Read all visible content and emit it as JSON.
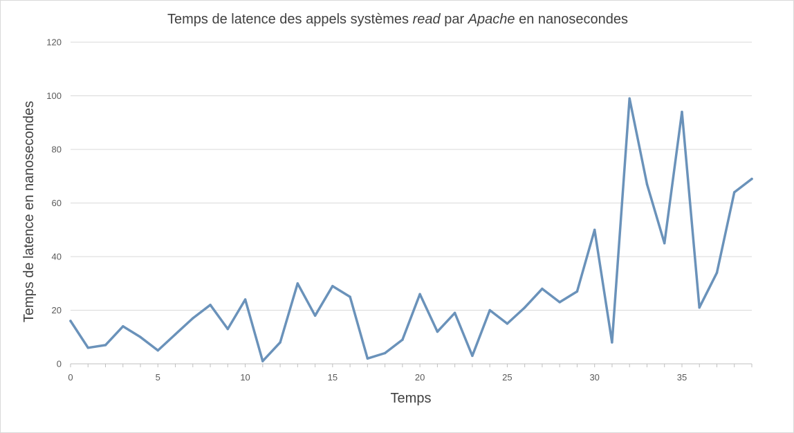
{
  "chart_data": {
    "type": "line",
    "title_parts": [
      {
        "text": "Temps de latence des appels systèmes ",
        "italic": false
      },
      {
        "text": "read",
        "italic": true
      },
      {
        "text": " par ",
        "italic": false
      },
      {
        "text": "Apache",
        "italic": true
      },
      {
        "text": " en nanosecondes",
        "italic": false
      }
    ],
    "xlabel": "Temps",
    "ylabel": "Temps de latence en nanosecondes",
    "xlim": [
      0,
      39
    ],
    "ylim": [
      0,
      120
    ],
    "x_ticks": [
      0,
      5,
      10,
      15,
      20,
      25,
      30,
      35
    ],
    "y_ticks": [
      0,
      20,
      40,
      60,
      80,
      100,
      120
    ],
    "grid": "horizontal",
    "legend": "none",
    "series": [
      {
        "color": "#6a92ba",
        "x": [
          0,
          1,
          2,
          3,
          4,
          5,
          6,
          7,
          8,
          9,
          10,
          11,
          12,
          13,
          14,
          15,
          16,
          17,
          18,
          19,
          20,
          21,
          22,
          23,
          24,
          25,
          26,
          27,
          28,
          29,
          30,
          31,
          32,
          33,
          34,
          35,
          36,
          37,
          38,
          39
        ],
        "values": [
          16,
          6,
          7,
          14,
          10,
          5,
          11,
          17,
          22,
          13,
          24,
          1,
          8,
          30,
          18,
          29,
          25,
          2,
          4,
          9,
          26,
          12,
          19,
          3,
          20,
          15,
          21,
          28,
          23,
          27,
          50,
          8,
          99,
          67,
          45,
          94,
          21,
          34,
          64,
          69
        ]
      }
    ]
  }
}
